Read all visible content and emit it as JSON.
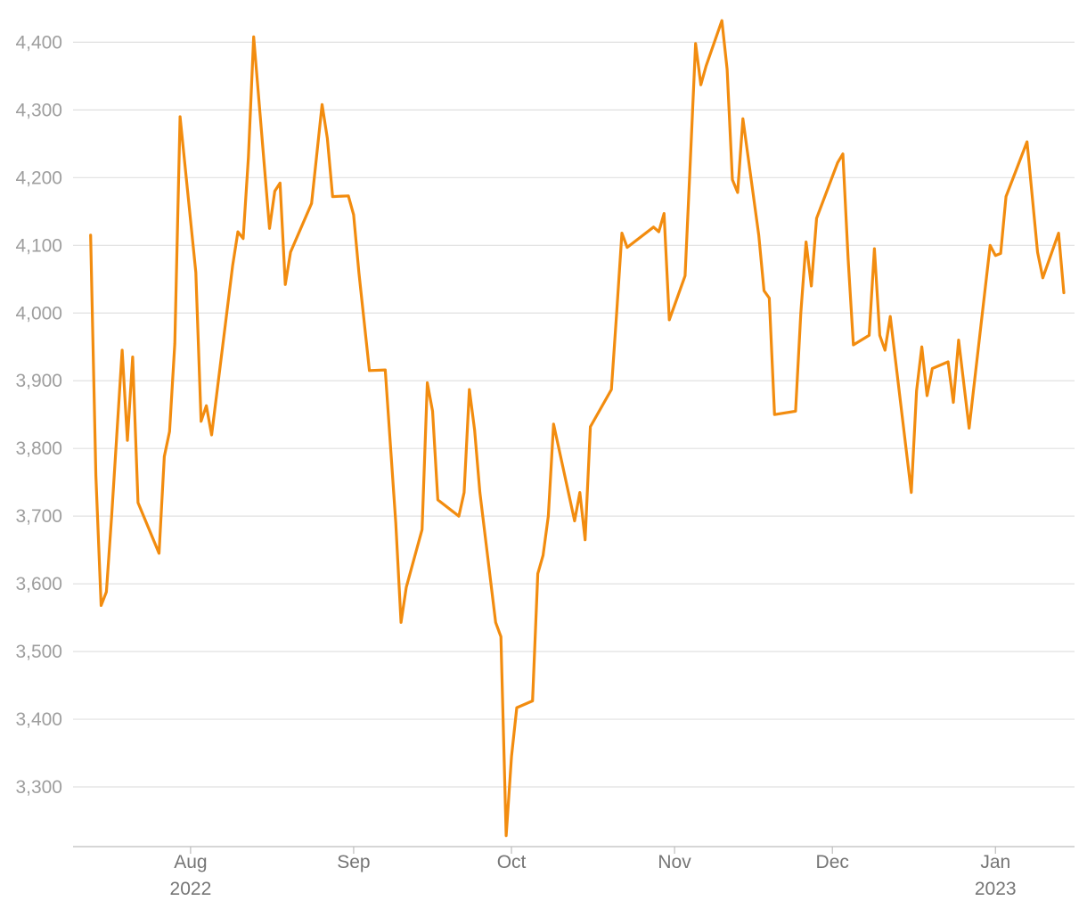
{
  "chart_data": {
    "type": "line",
    "title": "",
    "xlabel": "",
    "ylabel": "",
    "ylim": [
      3225,
      4440
    ],
    "xlim": [
      "2022-07-10",
      "2023-01-14"
    ],
    "grid": true,
    "y_ticks": [
      3300,
      3400,
      3500,
      3600,
      3700,
      3800,
      3900,
      4000,
      4100,
      4200,
      4300,
      4400
    ],
    "y_tick_labels": [
      "3,300",
      "3,400",
      "3,500",
      "3,600",
      "3,700",
      "3,800",
      "3,900",
      "4,000",
      "4,100",
      "4,200",
      "4,300",
      "4,400"
    ],
    "x_ticks": [
      {
        "date": "2022-08-01",
        "label": "Aug",
        "sublabel": "2022"
      },
      {
        "date": "2022-09-01",
        "label": "Sep",
        "sublabel": ""
      },
      {
        "date": "2022-10-01",
        "label": "Oct",
        "sublabel": ""
      },
      {
        "date": "2022-11-01",
        "label": "Nov",
        "sublabel": ""
      },
      {
        "date": "2022-12-01",
        "label": "Dec",
        "sublabel": ""
      },
      {
        "date": "2023-01-01",
        "label": "Jan",
        "sublabel": "2023"
      }
    ],
    "series": [
      {
        "color": "#F28C0F",
        "points": [
          [
            "2022-07-13",
            4115
          ],
          [
            "2022-07-14",
            3760
          ],
          [
            "2022-07-15",
            3568
          ],
          [
            "2022-07-16",
            3588
          ],
          [
            "2022-07-17",
            3700
          ],
          [
            "2022-07-19",
            3945
          ],
          [
            "2022-07-20",
            3812
          ],
          [
            "2022-07-21",
            3935
          ],
          [
            "2022-07-22",
            3720
          ],
          [
            "2022-07-26",
            3645
          ],
          [
            "2022-07-27",
            3788
          ],
          [
            "2022-07-28",
            3825
          ],
          [
            "2022-07-29",
            3955
          ],
          [
            "2022-07-30",
            4290
          ],
          [
            "2022-08-02",
            4060
          ],
          [
            "2022-08-03",
            3840
          ],
          [
            "2022-08-04",
            3863
          ],
          [
            "2022-08-05",
            3820
          ],
          [
            "2022-08-06",
            3882
          ],
          [
            "2022-08-09",
            4070
          ],
          [
            "2022-08-10",
            4120
          ],
          [
            "2022-08-11",
            4110
          ],
          [
            "2022-08-12",
            4230
          ],
          [
            "2022-08-13",
            4408
          ],
          [
            "2022-08-16",
            4125
          ],
          [
            "2022-08-17",
            4180
          ],
          [
            "2022-08-18",
            4192
          ],
          [
            "2022-08-19",
            4042
          ],
          [
            "2022-08-20",
            4090
          ],
          [
            "2022-08-24",
            4162
          ],
          [
            "2022-08-26",
            4308
          ],
          [
            "2022-08-27",
            4258
          ],
          [
            "2022-08-28",
            4172
          ],
          [
            "2022-08-31",
            4173
          ],
          [
            "2022-09-01",
            4145
          ],
          [
            "2022-09-02",
            4060
          ],
          [
            "2022-09-04",
            3915
          ],
          [
            "2022-09-07",
            3916
          ],
          [
            "2022-09-09",
            3690
          ],
          [
            "2022-09-10",
            3543
          ],
          [
            "2022-09-11",
            3595
          ],
          [
            "2022-09-14",
            3680
          ],
          [
            "2022-09-15",
            3897
          ],
          [
            "2022-09-16",
            3855
          ],
          [
            "2022-09-17",
            3724
          ],
          [
            "2022-09-21",
            3700
          ],
          [
            "2022-09-22",
            3735
          ],
          [
            "2022-09-23",
            3887
          ],
          [
            "2022-09-24",
            3827
          ],
          [
            "2022-09-25",
            3735
          ],
          [
            "2022-09-28",
            3543
          ],
          [
            "2022-09-29",
            3522
          ],
          [
            "2022-09-30",
            3228
          ],
          [
            "2022-10-01",
            3345
          ],
          [
            "2022-10-02",
            3417
          ],
          [
            "2022-10-05",
            3427
          ],
          [
            "2022-10-06",
            3615
          ],
          [
            "2022-10-07",
            3642
          ],
          [
            "2022-10-08",
            3700
          ],
          [
            "2022-10-09",
            3836
          ],
          [
            "2022-10-13",
            3693
          ],
          [
            "2022-10-14",
            3735
          ],
          [
            "2022-10-15",
            3665
          ],
          [
            "2022-10-16",
            3832
          ],
          [
            "2022-10-20",
            3887
          ],
          [
            "2022-10-21",
            4000
          ],
          [
            "2022-10-22",
            4118
          ],
          [
            "2022-10-23",
            4097
          ],
          [
            "2022-10-28",
            4127
          ],
          [
            "2022-10-29",
            4120
          ],
          [
            "2022-10-30",
            4147
          ],
          [
            "2022-10-31",
            3990
          ],
          [
            "2022-11-03",
            4055
          ],
          [
            "2022-11-04",
            4225
          ],
          [
            "2022-11-05",
            4398
          ],
          [
            "2022-11-06",
            4337
          ],
          [
            "2022-11-07",
            4365
          ],
          [
            "2022-11-10",
            4432
          ],
          [
            "2022-11-11",
            4360
          ],
          [
            "2022-11-12",
            4197
          ],
          [
            "2022-11-13",
            4178
          ],
          [
            "2022-11-14",
            4287
          ],
          [
            "2022-11-17",
            4115
          ],
          [
            "2022-11-18",
            4033
          ],
          [
            "2022-11-19",
            4022
          ],
          [
            "2022-11-20",
            3850
          ],
          [
            "2022-11-24",
            3855
          ],
          [
            "2022-11-25",
            4000
          ],
          [
            "2022-11-26",
            4105
          ],
          [
            "2022-11-27",
            4040
          ],
          [
            "2022-11-28",
            4140
          ],
          [
            "2022-12-02",
            4222
          ],
          [
            "2022-12-03",
            4235
          ],
          [
            "2022-12-04",
            4080
          ],
          [
            "2022-12-05",
            3953
          ],
          [
            "2022-12-08",
            3967
          ],
          [
            "2022-12-09",
            4095
          ],
          [
            "2022-12-10",
            3967
          ],
          [
            "2022-12-11",
            3945
          ],
          [
            "2022-12-12",
            3995
          ],
          [
            "2022-12-16",
            3735
          ],
          [
            "2022-12-17",
            3885
          ],
          [
            "2022-12-18",
            3950
          ],
          [
            "2022-12-19",
            3878
          ],
          [
            "2022-12-20",
            3918
          ],
          [
            "2022-12-23",
            3928
          ],
          [
            "2022-12-24",
            3868
          ],
          [
            "2022-12-25",
            3960
          ],
          [
            "2022-12-27",
            3830
          ],
          [
            "2022-12-31",
            4100
          ],
          [
            "2023-01-01",
            4085
          ],
          [
            "2023-01-02",
            4088
          ],
          [
            "2023-01-03",
            4172
          ],
          [
            "2023-01-07",
            4253
          ],
          [
            "2023-01-09",
            4090
          ],
          [
            "2023-01-10",
            4052
          ],
          [
            "2023-01-13",
            4118
          ],
          [
            "2023-01-14",
            4030
          ]
        ]
      }
    ]
  }
}
